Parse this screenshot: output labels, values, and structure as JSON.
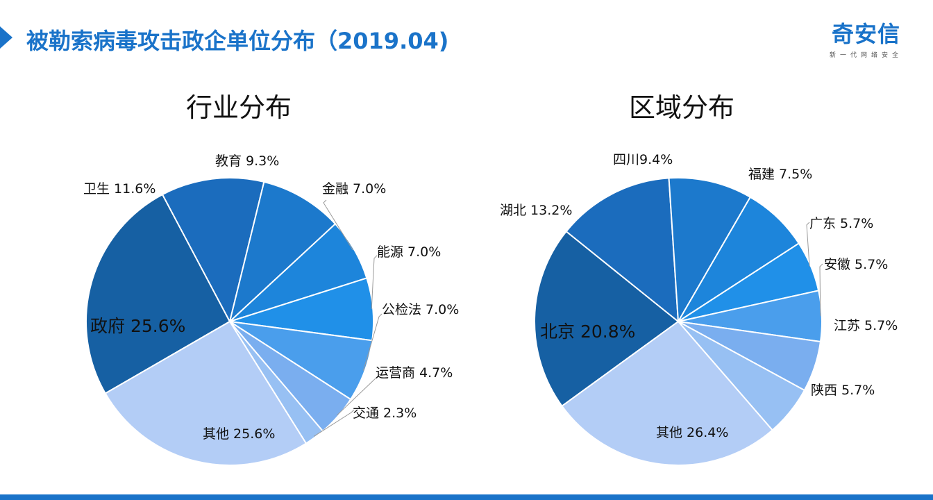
{
  "header": {
    "title": "被勒索病毒攻击政企单位分布（2019.04)"
  },
  "brand": {
    "name": "奇安信",
    "tagline": "新一代网络安全"
  },
  "colors": {
    "accent": "#1a73c9",
    "slice_edge": "#ffffff",
    "label_text": "#111111"
  },
  "chart_data": [
    {
      "type": "pie",
      "title": "行业分布",
      "categories": [
        "政府",
        "卫生",
        "教育",
        "金融",
        "能源",
        "公检法",
        "运营商",
        "交通",
        "其他"
      ],
      "values": [
        25.6,
        11.6,
        9.3,
        7.0,
        7.0,
        7.0,
        4.7,
        2.3,
        25.6
      ],
      "labels": [
        "政府 25.6%",
        "卫生 11.6%",
        "教育 9.3%",
        "金融 7.0%",
        "能源 7.0%",
        "公检法 7.0%",
        "运营商 4.7%",
        "交通 2.3%",
        "其他 25.6%"
      ],
      "colors": [
        "#1660a3",
        "#1b6cbd",
        "#1c79cc",
        "#1d85db",
        "#2090e8",
        "#4a9eec",
        "#7aaeef",
        "#97c0f3",
        "#b3cdf6"
      ]
    },
    {
      "type": "pie",
      "title": "区域分布",
      "categories": [
        "北京",
        "湖北",
        "四川",
        "福建",
        "广东",
        "安徽",
        "江苏",
        "陕西",
        "其他"
      ],
      "values": [
        20.8,
        13.2,
        9.4,
        7.5,
        5.7,
        5.7,
        5.7,
        5.7,
        26.4
      ],
      "labels": [
        "北京 20.8%",
        "湖北 13.2%",
        "四川9.4%",
        "福建 7.5%",
        "广东 5.7%",
        "安徽 5.7%",
        "江苏 5.7%",
        "陕西 5.7%",
        "其他 26.4%"
      ],
      "colors": [
        "#1660a3",
        "#1b6cbd",
        "#1c79cc",
        "#1d85db",
        "#2090e8",
        "#4a9eec",
        "#7aaeef",
        "#97c0f3",
        "#b3cdf6"
      ]
    }
  ]
}
